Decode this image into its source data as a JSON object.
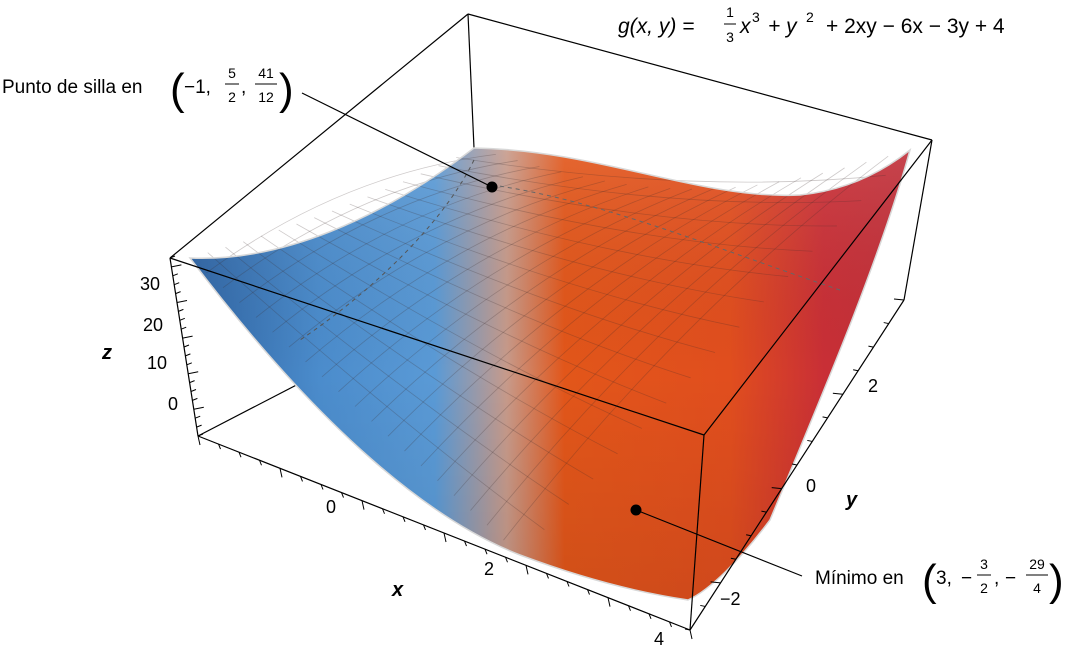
{
  "equation": {
    "lhs": "g(x, y) =",
    "frac_num": "1",
    "frac_den": "3",
    "t1": "x",
    "t1_exp": "3",
    "t2": "+ y",
    "t2_exp": "2",
    "rest": "+ 2xy − 6x − 3y + 4"
  },
  "axes": {
    "x": {
      "label": "x",
      "ticks": [
        "0",
        "2",
        "4"
      ]
    },
    "y": {
      "label": "y",
      "ticks": [
        "2",
        "0",
        "−2"
      ]
    },
    "z": {
      "label": "z",
      "ticks": [
        "30",
        "20",
        "10",
        "0"
      ]
    }
  },
  "annotations": {
    "saddle": {
      "prefix": "Punto de silla en",
      "a": "−1,",
      "b_num": "5",
      "b_den": "2",
      "c_num": "41",
      "c_den": "12",
      "point": [
        -1,
        2.5,
        3.4167
      ]
    },
    "minimum": {
      "prefix": "Mínimo en",
      "a": "3,",
      "b_neg": "−",
      "b_num": "3",
      "b_den": "2",
      "c_neg": "−",
      "c_num": "29",
      "c_den": "4",
      "point": [
        3,
        -1.5,
        -7.25
      ]
    }
  },
  "colors": {
    "blue": "#3a78b8",
    "orange": "#e0561c",
    "red": "#c92f36",
    "box": "#000000"
  }
}
